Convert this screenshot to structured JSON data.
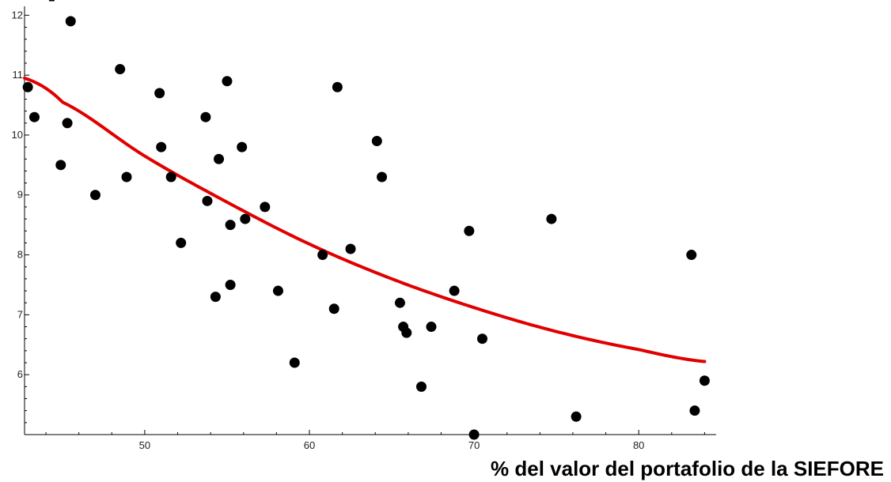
{
  "top_fragment": "...] ... ..., ..., ...",
  "chart_data": {
    "type": "scatter",
    "title": "",
    "xlabel": "% del valor del portafolio de la SIEFORE",
    "ylabel": "",
    "xlim": [
      42.7,
      84.7
    ],
    "ylim": [
      5.0,
      12.07
    ],
    "xticks": [
      50,
      60,
      70,
      80
    ],
    "yticks": [
      6,
      7,
      8,
      9,
      10,
      11,
      12
    ],
    "grid": false,
    "legend": "none",
    "colors": {
      "points": "#000000",
      "fit": "#e00000"
    },
    "series": [
      {
        "kind": "points",
        "x": [
          42.9,
          43.3,
          44.9,
          45.3,
          45.5,
          47.0,
          48.5,
          48.9,
          50.9,
          51.0,
          51.6,
          52.2,
          53.7,
          53.8,
          54.3,
          54.5,
          55.0,
          55.2,
          55.2,
          55.9,
          56.1,
          57.3,
          58.1,
          59.1,
          60.8,
          61.5,
          61.7,
          62.5,
          64.1,
          64.4,
          65.5,
          65.7,
          65.9,
          66.8,
          67.4,
          68.8,
          69.7,
          70.0,
          70.5,
          74.7,
          76.2,
          83.2,
          83.4,
          84.0
        ],
        "y": [
          10.8,
          10.3,
          9.5,
          10.2,
          11.9,
          9.0,
          11.1,
          9.3,
          10.7,
          9.8,
          9.3,
          8.2,
          10.3,
          8.9,
          7.3,
          9.6,
          10.9,
          8.5,
          7.5,
          9.8,
          8.6,
          8.8,
          7.4,
          6.2,
          8.0,
          7.1,
          10.8,
          8.1,
          9.9,
          9.3,
          7.2,
          6.8,
          6.7,
          5.8,
          6.8,
          7.4,
          8.4,
          5.0,
          6.6,
          8.6,
          5.3,
          8.0,
          5.4,
          5.9
        ]
      },
      {
        "kind": "fit-curve",
        "x": [
          42.7,
          45,
          50,
          55,
          60,
          65,
          70,
          75,
          80,
          84.0
        ],
        "y": [
          10.95,
          10.55,
          9.65,
          8.88,
          8.18,
          7.6,
          7.12,
          6.72,
          6.42,
          6.22
        ]
      }
    ]
  }
}
